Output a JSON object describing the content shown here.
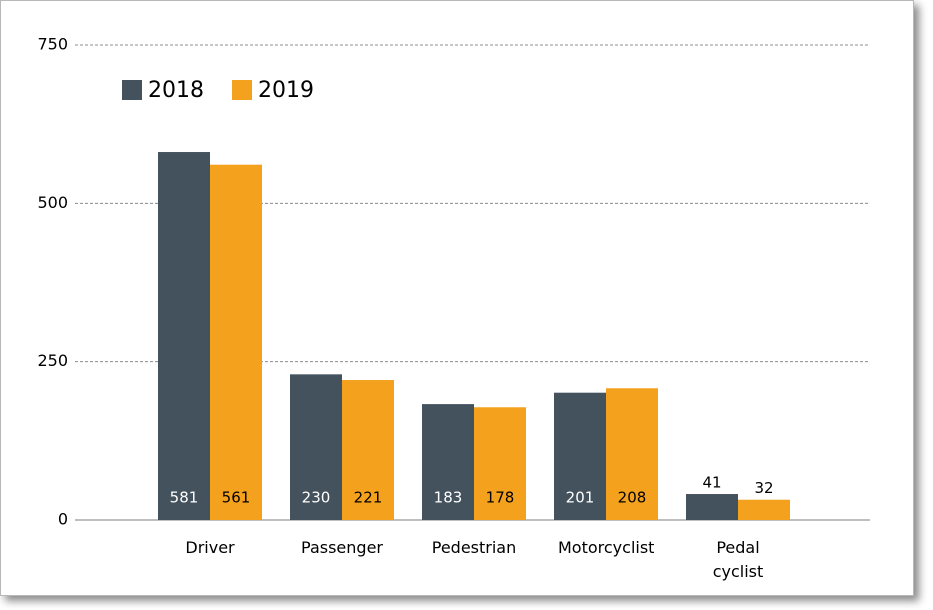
{
  "chart_data": {
    "type": "bar",
    "categories": [
      "Driver",
      "Passenger",
      "Pedestrian",
      "Motorcyclist",
      "Pedal cyclist"
    ],
    "series": [
      {
        "name": "2018",
        "color": "#44525e",
        "values": [
          581,
          230,
          183,
          201,
          41
        ]
      },
      {
        "name": "2019",
        "color": "#f4a11d",
        "values": [
          561,
          221,
          178,
          208,
          32
        ]
      }
    ],
    "ylim": [
      0,
      750
    ],
    "yticks": [
      0,
      250,
      500,
      750
    ],
    "grid": true
  }
}
